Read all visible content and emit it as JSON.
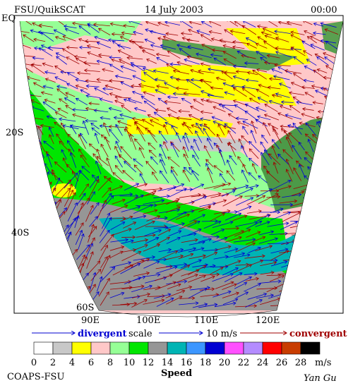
{
  "header": {
    "title": "FSU/QuikSCAT",
    "date": "14 July 2003",
    "time": "00:00"
  },
  "map": {
    "lat_labels": [
      "EQ",
      "20S",
      "40S",
      "60S"
    ],
    "lon_labels": [
      "90E",
      "100E",
      "110E",
      "120E"
    ]
  },
  "legend": {
    "divergent": "divergent",
    "scale": "scale",
    "scale_value": "10 m/s",
    "convergent": "convergent",
    "colorbar": {
      "ticks": [
        0,
        2,
        4,
        6,
        8,
        10,
        12,
        14,
        16,
        18,
        20,
        22,
        24,
        26,
        28
      ],
      "unit": "m/s",
      "colors": [
        "#ffffff",
        "#c8c8c8",
        "#ffff00",
        "#ffc8c8",
        "#96ff96",
        "#00e600",
        "#969696",
        "#00b4b4",
        "#3c96ff",
        "#0000d2",
        "#ff50ff",
        "#b48cff",
        "#ff0000",
        "#c83c00",
        "#000000"
      ],
      "label": "Speed"
    }
  },
  "footer": {
    "credit": "COAPS-FSU",
    "author": "Yan Gu"
  }
}
